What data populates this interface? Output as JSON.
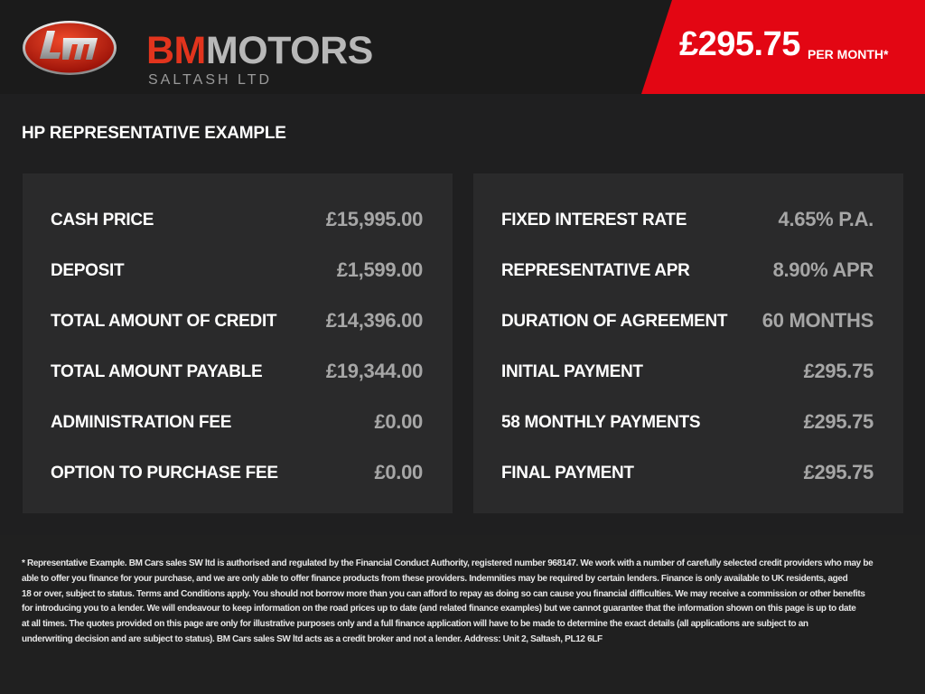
{
  "brand": {
    "name_part1": "BM",
    "name_part2": "MOTORS",
    "subtitle": "SALTASH LTD",
    "logo_text": "bm",
    "colors": {
      "red": "#e30613",
      "logo_red": "#e2341d",
      "grey": "#b8b8b8"
    }
  },
  "price_banner": {
    "amount": "£295.75",
    "suffix": "PER MONTH*"
  },
  "section_title": "HP REPRESENTATIVE EXAMPLE",
  "left_panel": [
    {
      "label": "CASH PRICE",
      "value": "£15,995.00"
    },
    {
      "label": "DEPOSIT",
      "value": "£1,599.00"
    },
    {
      "label": "TOTAL AMOUNT OF CREDIT",
      "value": "£14,396.00"
    },
    {
      "label": "TOTAL AMOUNT PAYABLE",
      "value": "£19,344.00"
    },
    {
      "label": "ADMINISTRATION FEE",
      "value": "£0.00"
    },
    {
      "label": "OPTION TO PURCHASE FEE",
      "value": "£0.00"
    }
  ],
  "right_panel": [
    {
      "label": "FIXED INTEREST RATE",
      "value": "4.65% P.A."
    },
    {
      "label": "REPRESENTATIVE APR",
      "value": "8.90% APR"
    },
    {
      "label": "DURATION OF AGREEMENT",
      "value": "60 MONTHS"
    },
    {
      "label": "INITIAL PAYMENT",
      "value": "£295.75"
    },
    {
      "label": "58 MONTHLY PAYMENTS",
      "value": "£295.75"
    },
    {
      "label": "FINAL PAYMENT",
      "value": "£295.75"
    }
  ],
  "disclaimer_lines": [
    "* Representative Example. BM Cars sales SW ltd is authorised and regulated by the Financial Conduct Authority, registered number 968147. We work with a number of carefully selected credit providers who may be",
    "able to offer you finance for your purchase, and we are only able to offer finance products from these providers. Indemnities may be required by certain lenders. Finance is only available to UK residents, aged",
    "18 or over, subject to status. Terms and Conditions apply. You should not borrow more than you can afford to repay as doing so can cause you financial difficulties. We may receive a commission or other benefits",
    "for introducing you to a lender. We will endeavour to keep information on the road prices up to date (and related finance examples) but we cannot guarantee that the information shown on this page is up to date",
    "at all times. The quotes provided on this page are only for illustrative purposes only and a full finance application will have to be made to determine the exact details (all applications are subject to an",
    "underwriting decision and are subject to status). BM Cars sales SW ltd acts as a credit broker and not a lender. Address: Unit 2, Saltash, PL12 6LF"
  ]
}
